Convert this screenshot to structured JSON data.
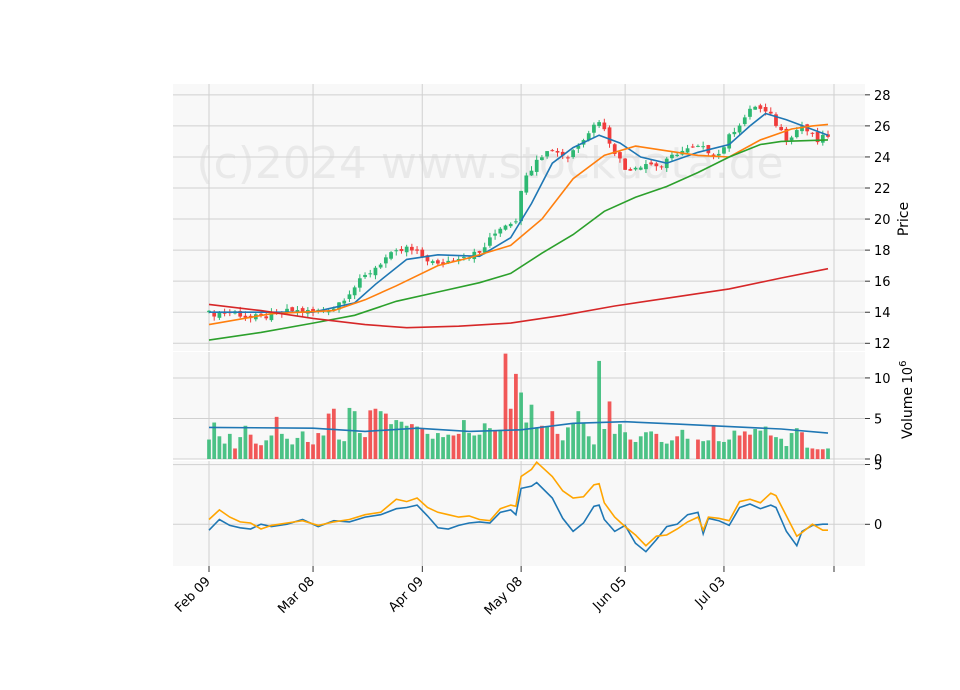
{
  "chart_data": {
    "type": "candlestick",
    "watermark": "(c)2024 www.stockdata.de",
    "x_tick_labels": [
      "Feb 09",
      "Mar 08",
      "Apr 09",
      "May 08",
      "Jun 05",
      "Jul 03"
    ],
    "x_tick_indices": [
      0,
      20,
      41,
      60,
      80,
      99
    ],
    "n_sessions": 120,
    "price_panel": {
      "ylabel": "Price",
      "ylim": [
        11.5,
        28.7
      ],
      "yticks": [
        12,
        14,
        16,
        18,
        20,
        22,
        24,
        26,
        28
      ],
      "candle_anchors": [
        [
          0,
          13.9
        ],
        [
          5,
          14.0
        ],
        [
          8,
          13.6
        ],
        [
          12,
          13.8
        ],
        [
          16,
          14.1
        ],
        [
          20,
          14.0
        ],
        [
          24,
          14.3
        ],
        [
          27,
          15.3
        ],
        [
          30,
          16.3
        ],
        [
          34,
          17.5
        ],
        [
          38,
          18.1
        ],
        [
          41,
          17.6
        ],
        [
          44,
          17.0
        ],
        [
          48,
          17.6
        ],
        [
          52,
          17.8
        ],
        [
          56,
          19.5
        ],
        [
          59,
          20.0
        ],
        [
          60,
          22.0
        ],
        [
          63,
          24.0
        ],
        [
          66,
          24.5
        ],
        [
          69,
          24.0
        ],
        [
          72,
          25.3
        ],
        [
          75,
          26.4
        ],
        [
          77,
          25.0
        ],
        [
          80,
          23.2
        ],
        [
          84,
          23.6
        ],
        [
          87,
          23.4
        ],
        [
          90,
          24.3
        ],
        [
          94,
          24.6
        ],
        [
          98,
          24.2
        ],
        [
          101,
          25.8
        ],
        [
          105,
          27.3
        ],
        [
          108,
          26.6
        ],
        [
          111,
          25.2
        ],
        [
          114,
          26.0
        ],
        [
          117,
          25.0
        ],
        [
          119,
          25.4
        ]
      ],
      "moving_averages": [
        {
          "color": "#1f77b4",
          "values": [
            [
              0,
              14.0
            ],
            [
              20,
              14.0
            ],
            [
              28,
              14.6
            ],
            [
              32,
              15.8
            ],
            [
              38,
              17.4
            ],
            [
              44,
              17.7
            ],
            [
              52,
              17.6
            ],
            [
              58,
              18.8
            ],
            [
              62,
              21.0
            ],
            [
              66,
              23.6
            ],
            [
              70,
              24.6
            ],
            [
              75,
              25.4
            ],
            [
              79,
              24.9
            ],
            [
              83,
              24.0
            ],
            [
              88,
              23.6
            ],
            [
              94,
              24.3
            ],
            [
              100,
              24.8
            ],
            [
              104,
              26.0
            ],
            [
              107,
              26.8
            ],
            [
              111,
              26.4
            ],
            [
              115,
              25.9
            ],
            [
              119,
              25.4
            ]
          ]
        },
        {
          "color": "#ff7f0e",
          "values": [
            [
              0,
              13.2
            ],
            [
              12,
              13.9
            ],
            [
              24,
              14.1
            ],
            [
              30,
              14.8
            ],
            [
              36,
              15.7
            ],
            [
              44,
              17.0
            ],
            [
              50,
              17.5
            ],
            [
              58,
              18.3
            ],
            [
              64,
              20.0
            ],
            [
              70,
              22.6
            ],
            [
              76,
              24.1
            ],
            [
              82,
              24.7
            ],
            [
              88,
              24.4
            ],
            [
              94,
              24.1
            ],
            [
              100,
              24.0
            ],
            [
              106,
              25.1
            ],
            [
              112,
              25.8
            ],
            [
              116,
              26.0
            ],
            [
              119,
              26.1
            ]
          ]
        },
        {
          "color": "#2ca02c",
          "values": [
            [
              0,
              12.2
            ],
            [
              10,
              12.7
            ],
            [
              20,
              13.3
            ],
            [
              28,
              13.8
            ],
            [
              36,
              14.7
            ],
            [
              44,
              15.3
            ],
            [
              52,
              15.9
            ],
            [
              58,
              16.5
            ],
            [
              64,
              17.8
            ],
            [
              70,
              19.0
            ],
            [
              76,
              20.5
            ],
            [
              82,
              21.4
            ],
            [
              88,
              22.1
            ],
            [
              94,
              23.0
            ],
            [
              100,
              24.0
            ],
            [
              106,
              24.8
            ],
            [
              110,
              25.0
            ],
            [
              119,
              25.1
            ]
          ]
        },
        {
          "color": "#d62728",
          "values": [
            [
              0,
              14.5
            ],
            [
              10,
              14.1
            ],
            [
              20,
              13.6
            ],
            [
              30,
              13.2
            ],
            [
              38,
              13.0
            ],
            [
              48,
              13.1
            ],
            [
              58,
              13.3
            ],
            [
              68,
              13.8
            ],
            [
              78,
              14.4
            ],
            [
              90,
              15.0
            ],
            [
              100,
              15.5
            ],
            [
              110,
              16.2
            ],
            [
              119,
              16.8
            ]
          ]
        }
      ]
    },
    "volume_panel": {
      "ylabel": "Volume",
      "scale_exponent": "10^6",
      "ylim": [
        0,
        13.2
      ],
      "yticks": [
        0,
        5,
        10
      ],
      "up_color": "#2eb872",
      "down_color": "#f03c3c",
      "bars": [
        2.4,
        4.5,
        2.8,
        1.9,
        3.1,
        1.3,
        2.7,
        4.1,
        3.0,
        1.9,
        1.7,
        2.3,
        2.9,
        5.2,
        3.1,
        2.5,
        1.8,
        2.6,
        3.4,
        2.1,
        1.8,
        3.2,
        2.9,
        5.6,
        6.2,
        2.4,
        2.2,
        6.3,
        5.9,
        3.2,
        2.7,
        6.0,
        6.2,
        5.9,
        5.6,
        4.3,
        4.8,
        4.6,
        4.1,
        4.3,
        4.0,
        3.7,
        3.1,
        2.5,
        3.2,
        2.7,
        3.0,
        2.9,
        3.1,
        4.8,
        3.2,
        2.9,
        3.0,
        4.4,
        3.8,
        3.5,
        3.6,
        13.0,
        6.2,
        10.5,
        8.2,
        4.5,
        6.7,
        3.9,
        4.1,
        4.0,
        5.9,
        3.1,
        2.3,
        3.9,
        4.4,
        5.9,
        4.4,
        2.8,
        1.8,
        12.1,
        3.7,
        7.1,
        3.1,
        4.3,
        3.3,
        2.4,
        2.1,
        2.8,
        3.3,
        3.4,
        3.1,
        2.1,
        1.9,
        2.3,
        2.8,
        3.6,
        2.5,
        0.0,
        2.4,
        2.2,
        2.3,
        4.2,
        2.2,
        2.1,
        2.4,
        3.5,
        2.9,
        3.4,
        3.0,
        3.7,
        3.5,
        4.0,
        2.9,
        2.7,
        2.5,
        1.6,
        3.2,
        3.8,
        3.3,
        1.4,
        1.3,
        1.2,
        1.2,
        1.3
      ],
      "avg_line": {
        "color": "#1f77b4",
        "values": [
          [
            0,
            3.9
          ],
          [
            20,
            3.8
          ],
          [
            30,
            3.4
          ],
          [
            40,
            3.8
          ],
          [
            50,
            3.4
          ],
          [
            60,
            3.6
          ],
          [
            70,
            4.4
          ],
          [
            80,
            4.6
          ],
          [
            90,
            4.3
          ],
          [
            100,
            4.0
          ],
          [
            110,
            3.7
          ],
          [
            119,
            3.2
          ]
        ]
      }
    },
    "indicator_panel": {
      "ylim": [
        -3.5,
        5.3
      ],
      "yticks": [
        0,
        5
      ],
      "series": [
        {
          "color": "#1f77b4",
          "values": [
            [
              0,
              -0.5
            ],
            [
              2,
              0.4
            ],
            [
              4,
              -0.1
            ],
            [
              6,
              -0.3
            ],
            [
              8,
              -0.4
            ],
            [
              10,
              0.0
            ],
            [
              12,
              -0.2
            ],
            [
              15,
              0.0
            ],
            [
              18,
              0.4
            ],
            [
              21,
              -0.2
            ],
            [
              24,
              0.3
            ],
            [
              27,
              0.2
            ],
            [
              30,
              0.6
            ],
            [
              33,
              0.8
            ],
            [
              36,
              1.3
            ],
            [
              38,
              1.4
            ],
            [
              40,
              1.6
            ],
            [
              42,
              0.7
            ],
            [
              44,
              -0.3
            ],
            [
              46,
              -0.4
            ],
            [
              48,
              -0.1
            ],
            [
              50,
              0.1
            ],
            [
              52,
              0.2
            ],
            [
              54,
              0.1
            ],
            [
              56,
              1.0
            ],
            [
              58,
              1.2
            ],
            [
              59,
              0.8
            ],
            [
              60,
              3.0
            ],
            [
              62,
              3.2
            ],
            [
              63,
              3.5
            ],
            [
              66,
              2.2
            ],
            [
              68,
              0.5
            ],
            [
              70,
              -0.6
            ],
            [
              72,
              0.1
            ],
            [
              74,
              1.5
            ],
            [
              75,
              1.6
            ],
            [
              76,
              0.4
            ],
            [
              78,
              -0.6
            ],
            [
              80,
              -0.1
            ],
            [
              82,
              -1.6
            ],
            [
              84,
              -2.3
            ],
            [
              86,
              -1.3
            ],
            [
              88,
              -0.2
            ],
            [
              90,
              0.0
            ],
            [
              92,
              0.8
            ],
            [
              94,
              1.0
            ],
            [
              95,
              -0.8
            ],
            [
              96,
              0.5
            ],
            [
              98,
              0.3
            ],
            [
              100,
              -0.1
            ],
            [
              102,
              1.4
            ],
            [
              104,
              1.7
            ],
            [
              106,
              1.3
            ],
            [
              108,
              1.6
            ],
            [
              109,
              1.4
            ],
            [
              111,
              -0.6
            ],
            [
              113,
              -1.8
            ],
            [
              114,
              -0.6
            ],
            [
              116,
              -0.1
            ],
            [
              118,
              0.0
            ],
            [
              119,
              0.0
            ]
          ]
        },
        {
          "color": "#ffa500",
          "values": [
            [
              0,
              0.4
            ],
            [
              2,
              1.2
            ],
            [
              4,
              0.6
            ],
            [
              6,
              0.2
            ],
            [
              8,
              0.1
            ],
            [
              10,
              -0.4
            ],
            [
              12,
              -0.1
            ],
            [
              15,
              0.1
            ],
            [
              18,
              0.3
            ],
            [
              21,
              -0.1
            ],
            [
              24,
              0.2
            ],
            [
              27,
              0.4
            ],
            [
              30,
              0.8
            ],
            [
              33,
              1.0
            ],
            [
              36,
              2.1
            ],
            [
              38,
              1.9
            ],
            [
              40,
              2.2
            ],
            [
              42,
              1.4
            ],
            [
              44,
              1.0
            ],
            [
              46,
              0.8
            ],
            [
              48,
              0.6
            ],
            [
              50,
              0.7
            ],
            [
              52,
              0.4
            ],
            [
              54,
              0.3
            ],
            [
              56,
              1.3
            ],
            [
              58,
              1.6
            ],
            [
              59,
              1.5
            ],
            [
              60,
              4.0
            ],
            [
              62,
              4.6
            ],
            [
              63,
              5.2
            ],
            [
              66,
              4.0
            ],
            [
              68,
              2.8
            ],
            [
              70,
              2.2
            ],
            [
              72,
              2.3
            ],
            [
              74,
              3.3
            ],
            [
              75,
              3.4
            ],
            [
              76,
              1.8
            ],
            [
              78,
              0.6
            ],
            [
              80,
              -0.2
            ],
            [
              82,
              -0.9
            ],
            [
              84,
              -1.8
            ],
            [
              86,
              -1.0
            ],
            [
              88,
              -0.9
            ],
            [
              90,
              -0.4
            ],
            [
              92,
              0.2
            ],
            [
              94,
              0.6
            ],
            [
              95,
              -0.5
            ],
            [
              96,
              0.6
            ],
            [
              98,
              0.5
            ],
            [
              100,
              0.3
            ],
            [
              102,
              1.9
            ],
            [
              104,
              2.1
            ],
            [
              106,
              1.8
            ],
            [
              108,
              2.6
            ],
            [
              109,
              2.4
            ],
            [
              111,
              0.7
            ],
            [
              113,
              -1.0
            ],
            [
              114,
              -0.7
            ],
            [
              116,
              0.0
            ],
            [
              118,
              -0.5
            ],
            [
              119,
              -0.5
            ]
          ]
        }
      ]
    }
  }
}
